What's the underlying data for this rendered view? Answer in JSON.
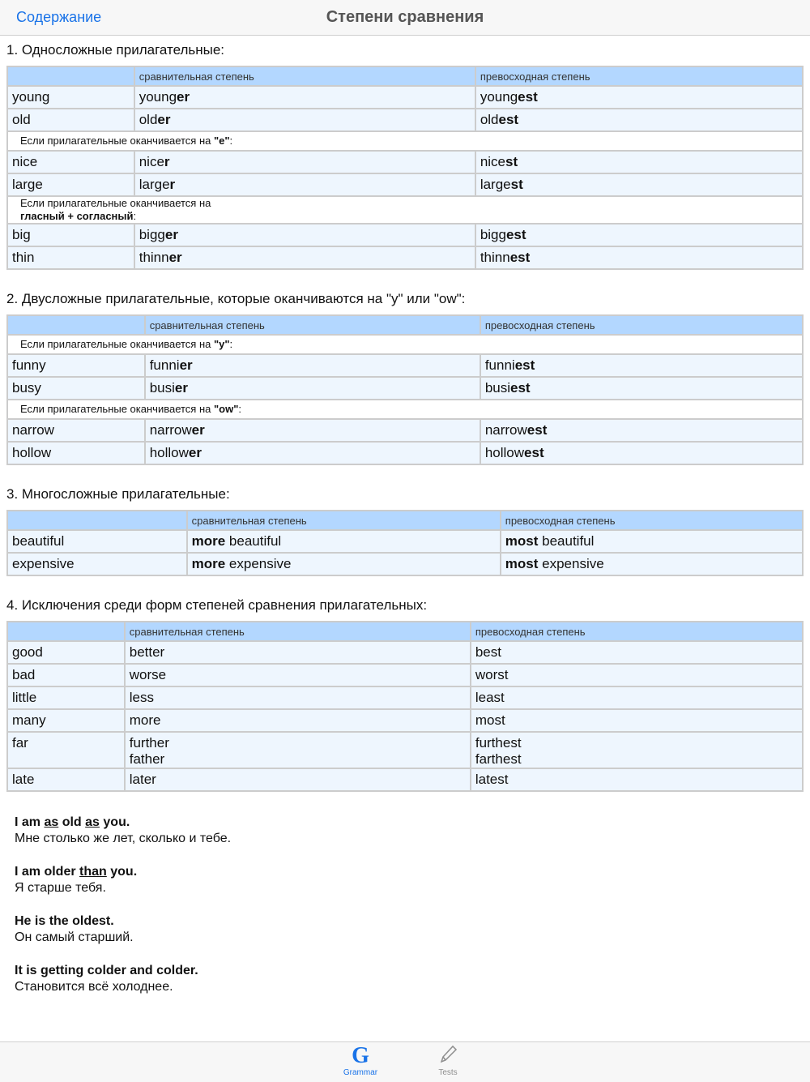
{
  "nav": {
    "back_label": "Содержание",
    "title": "Степени сравнения"
  },
  "sections": [
    {
      "heading": "1. Односложные прилагательные:",
      "cols": [
        157,
        422,
        405
      ],
      "header": [
        "",
        "сравнительная степень",
        "превосходная степень"
      ],
      "rows": [
        {
          "cells": [
            [
              [
                "young"
              ]
            ],
            [
              [
                "young"
              ],
              [
                "er",
                1
              ]
            ],
            [
              [
                "young"
              ],
              [
                "est",
                1
              ]
            ]
          ]
        },
        {
          "cells": [
            [
              [
                "old"
              ]
            ],
            [
              [
                "old"
              ],
              [
                "er",
                1
              ]
            ],
            [
              [
                "old"
              ],
              [
                "est",
                1
              ]
            ]
          ]
        },
        {
          "note": [
            [
              "Если прилагательные оканчивается на "
            ],
            [
              "\"e\"",
              1
            ],
            [
              ":"
            ]
          ]
        },
        {
          "cells": [
            [
              [
                "nice"
              ]
            ],
            [
              [
                "nice"
              ],
              [
                "r",
                1
              ]
            ],
            [
              [
                "nice"
              ],
              [
                "st",
                1
              ]
            ]
          ]
        },
        {
          "cells": [
            [
              [
                "large"
              ]
            ],
            [
              [
                "large"
              ],
              [
                "r",
                1
              ]
            ],
            [
              [
                "large"
              ],
              [
                "st",
                1
              ]
            ]
          ]
        },
        {
          "note": [
            [
              "Если прилагательные оканчивается на\n"
            ],
            [
              "гласный + согласный",
              1
            ],
            [
              ":"
            ]
          ]
        },
        {
          "cells": [
            [
              [
                "big"
              ]
            ],
            [
              [
                "bigg"
              ],
              [
                "er",
                1
              ]
            ],
            [
              [
                "bigg"
              ],
              [
                "est",
                1
              ]
            ]
          ]
        },
        {
          "cells": [
            [
              [
                "thin"
              ]
            ],
            [
              [
                "thinn"
              ],
              [
                "er",
                1
              ]
            ],
            [
              [
                "thinn"
              ],
              [
                "est",
                1
              ]
            ]
          ]
        }
      ]
    },
    {
      "heading": "2. Двусложные прилагательные, которые оканчиваются на \"y\" или \"ow\":",
      "cols": [
        170,
        415,
        399
      ],
      "header": [
        "",
        "сравнительная степень",
        "превосходная степень"
      ],
      "rows": [
        {
          "note": [
            [
              "Если прилагательные оканчивается на "
            ],
            [
              "\"y\"",
              1
            ],
            [
              ":"
            ]
          ]
        },
        {
          "cells": [
            [
              [
                "funny"
              ]
            ],
            [
              [
                "funni"
              ],
              [
                "er",
                1
              ]
            ],
            [
              [
                "funni"
              ],
              [
                "est",
                1
              ]
            ]
          ]
        },
        {
          "cells": [
            [
              [
                "busy"
              ]
            ],
            [
              [
                "busi"
              ],
              [
                "er",
                1
              ]
            ],
            [
              [
                "busi"
              ],
              [
                "est",
                1
              ]
            ]
          ]
        },
        {
          "note": [
            [
              "Если прилагательные оканчивается на "
            ],
            [
              "\"ow\"",
              1
            ],
            [
              ":"
            ]
          ]
        },
        {
          "cells": [
            [
              [
                "narrow"
              ]
            ],
            [
              [
                "narrow"
              ],
              [
                "er",
                1
              ]
            ],
            [
              [
                "narrow"
              ],
              [
                "est",
                1
              ]
            ]
          ]
        },
        {
          "cells": [
            [
              [
                "hollow"
              ]
            ],
            [
              [
                "hollow"
              ],
              [
                "er",
                1
              ]
            ],
            [
              [
                "hollow"
              ],
              [
                "est",
                1
              ]
            ]
          ]
        }
      ]
    },
    {
      "heading": "3. Многосложные прилагательные:",
      "cols": [
        222,
        388,
        374
      ],
      "header": [
        "",
        "сравнительная степень",
        "превосходная степень"
      ],
      "rows": [
        {
          "cells": [
            [
              [
                "beautiful"
              ]
            ],
            [
              [
                "more",
                1
              ],
              [
                " beautiful"
              ]
            ],
            [
              [
                "most",
                1
              ],
              [
                " beautiful"
              ]
            ]
          ]
        },
        {
          "cells": [
            [
              [
                "expensive"
              ]
            ],
            [
              [
                "more",
                1
              ],
              [
                " expensive"
              ]
            ],
            [
              [
                "most",
                1
              ],
              [
                " expensive"
              ]
            ]
          ]
        }
      ]
    },
    {
      "heading": "4. Исключения среди форм степеней сравнения прилагательных:",
      "cols": [
        145,
        428,
        411
      ],
      "header": [
        "",
        "сравнительная степень",
        "превосходная степень"
      ],
      "rows": [
        {
          "cells": [
            [
              [
                "good"
              ]
            ],
            [
              [
                "better"
              ]
            ],
            [
              [
                "best"
              ]
            ]
          ]
        },
        {
          "cells": [
            [
              [
                "bad"
              ]
            ],
            [
              [
                "worse"
              ]
            ],
            [
              [
                "worst"
              ]
            ]
          ]
        },
        {
          "cells": [
            [
              [
                "little"
              ]
            ],
            [
              [
                "less"
              ]
            ],
            [
              [
                "least"
              ]
            ]
          ]
        },
        {
          "cells": [
            [
              [
                "many"
              ]
            ],
            [
              [
                "more"
              ]
            ],
            [
              [
                "most"
              ]
            ]
          ]
        },
        {
          "cells": [
            [
              [
                "far"
              ]
            ],
            [
              [
                "further\nfather"
              ]
            ],
            [
              [
                "furthest\nfarthest"
              ]
            ]
          ]
        },
        {
          "cells": [
            [
              [
                "late"
              ]
            ],
            [
              [
                "later"
              ]
            ],
            [
              [
                "latest"
              ]
            ]
          ]
        }
      ]
    }
  ],
  "examples": [
    {
      "en": [
        [
          "I am "
        ],
        [
          "as",
          2
        ],
        [
          " old "
        ],
        [
          "as",
          2
        ],
        [
          " you."
        ]
      ],
      "ru": "Мне столько же лет, сколько и тебе."
    },
    {
      "en": [
        [
          "I am older "
        ],
        [
          "than",
          2
        ],
        [
          " you."
        ]
      ],
      "ru": "Я старше тебя."
    },
    {
      "en": [
        [
          "He is the oldest."
        ]
      ],
      "ru": "Он самый старший."
    },
    {
      "en": [
        [
          "It is getting colder and colder."
        ]
      ],
      "ru": "Становится всё холоднее."
    }
  ],
  "tabbar": {
    "items": [
      {
        "label": "Grammar",
        "icon": "grammar-g-icon",
        "active": true
      },
      {
        "label": "Tests",
        "icon": "pencil-icon",
        "active": false
      }
    ],
    "accent": "#1a73e8",
    "inactive": "#8e8e8e"
  }
}
